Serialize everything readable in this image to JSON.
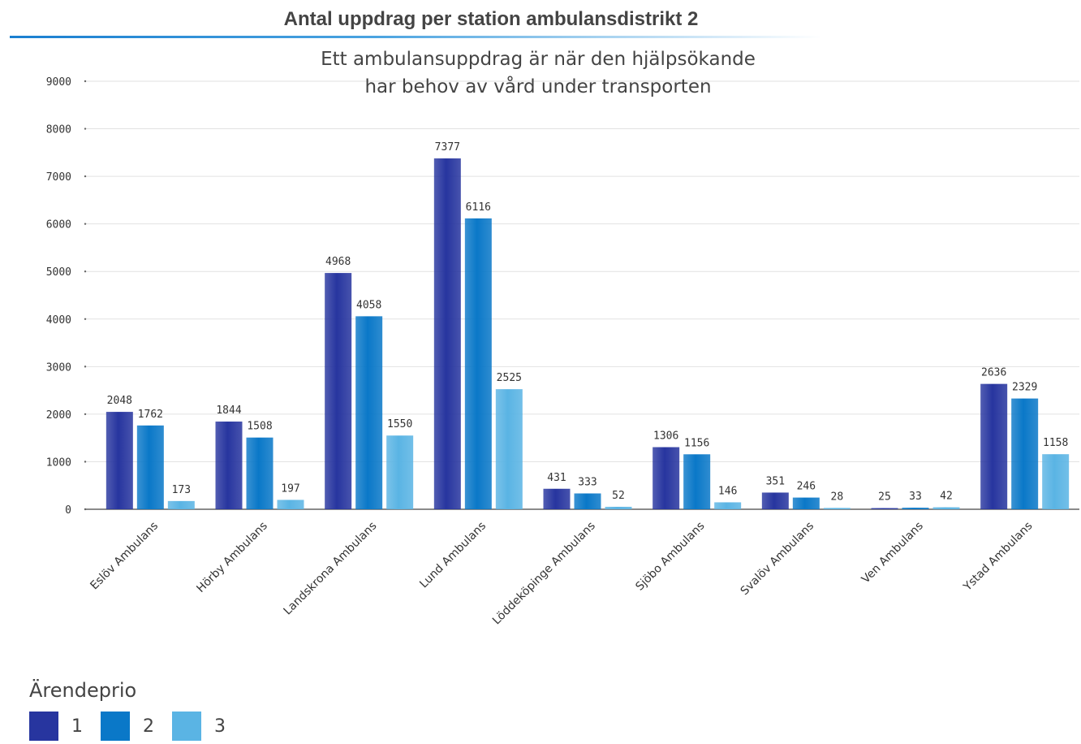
{
  "header": {
    "title": "Antal uppdrag per station ambulansdistrikt 2"
  },
  "chart_data": {
    "type": "bar",
    "title": "Ett ambulansuppdrag är när den hjälpsökande har behov av vård under transporten",
    "title_lines": [
      "Ett ambulansuppdrag är när den hjälpsökande",
      "har behov av vård under transporten"
    ],
    "categories": [
      "Eslöv Ambulans",
      "Hörby Ambulans",
      "Landskrona Ambulans",
      "Lund  Ambulans",
      "Löddeköpinge Ambulans",
      "Sjöbo Ambulans",
      "Svalöv Ambulans",
      "Ven Ambulans",
      "Ystad Ambulans"
    ],
    "series": [
      {
        "name": "1",
        "color": "#27359f",
        "values": [
          2048,
          1844,
          4968,
          7377,
          431,
          1306,
          351,
          25,
          2636
        ]
      },
      {
        "name": "2",
        "color": "#0a78c8",
        "values": [
          1762,
          1508,
          4058,
          6116,
          333,
          1156,
          246,
          33,
          2329
        ]
      },
      {
        "name": "3",
        "color": "#5ab4e4",
        "values": [
          173,
          197,
          1550,
          2525,
          52,
          146,
          28,
          42,
          1158
        ]
      }
    ],
    "ylim": [
      0,
      9000
    ],
    "yticks": [
      "0",
      "1000",
      "2000",
      "3000",
      "4000",
      "5000",
      "6000",
      "7000",
      "8000",
      "9000"
    ],
    "grid": true,
    "data_labels": true,
    "legend": {
      "title": "Ärendeprio",
      "placement": "bottom-left"
    }
  }
}
